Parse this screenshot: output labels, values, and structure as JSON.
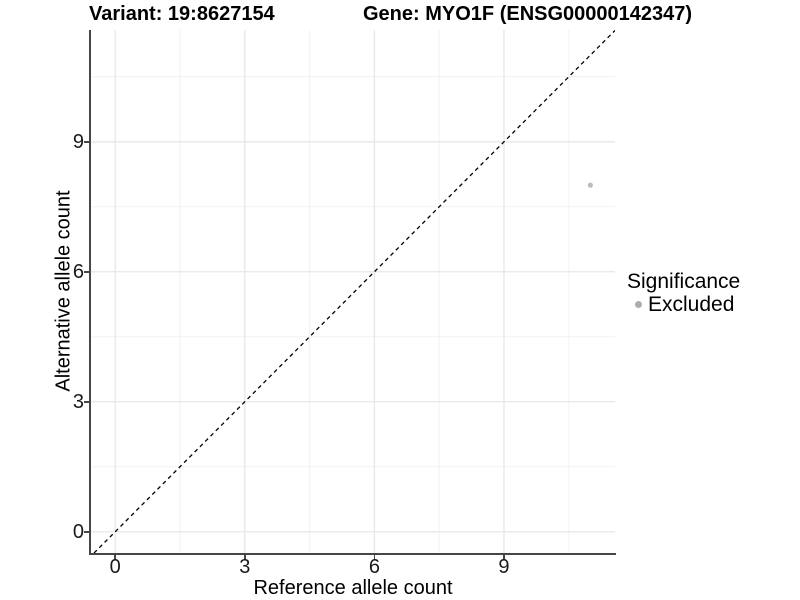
{
  "figure": {
    "title_left": "Variant: 19:8627154",
    "title_right": "Gene: MYO1F (ENSG00000142347)"
  },
  "chart_data": {
    "type": "scatter",
    "title": "Variant: 19:8627154  /  Gene: MYO1F (ENSG00000142347)",
    "xlabel": "Reference allele count",
    "ylabel": "Alternative allele count",
    "x_ticks": [
      0,
      3,
      6,
      9
    ],
    "y_ticks": [
      0,
      3,
      6,
      9
    ],
    "x_minor_ticks": [
      1.5,
      4.5,
      7.5,
      10.5
    ],
    "y_minor_ticks": [
      1.5,
      4.5,
      7.5,
      10.5
    ],
    "xlim": [
      -0.56,
      11.57
    ],
    "ylim": [
      -0.49,
      11.58
    ],
    "grid": "major+minor",
    "legend_position": "right",
    "points": [
      {
        "x": 11,
        "y": 8,
        "significance": "Excluded"
      }
    ],
    "identity_line": {
      "style": "dashed",
      "from": [
        -0.49,
        -0.49
      ],
      "to": [
        11.57,
        11.57
      ],
      "color": "#000000"
    },
    "legend": {
      "title": "Significance",
      "items": [
        {
          "label": "Excluded",
          "color": "#adadad"
        }
      ]
    },
    "colors": {
      "point": "#bdbdbd",
      "grid_major": "#e7e7e7",
      "grid_minor": "#f2f2f2",
      "axis_line": "#464646",
      "text": "#1a1a1a"
    }
  }
}
